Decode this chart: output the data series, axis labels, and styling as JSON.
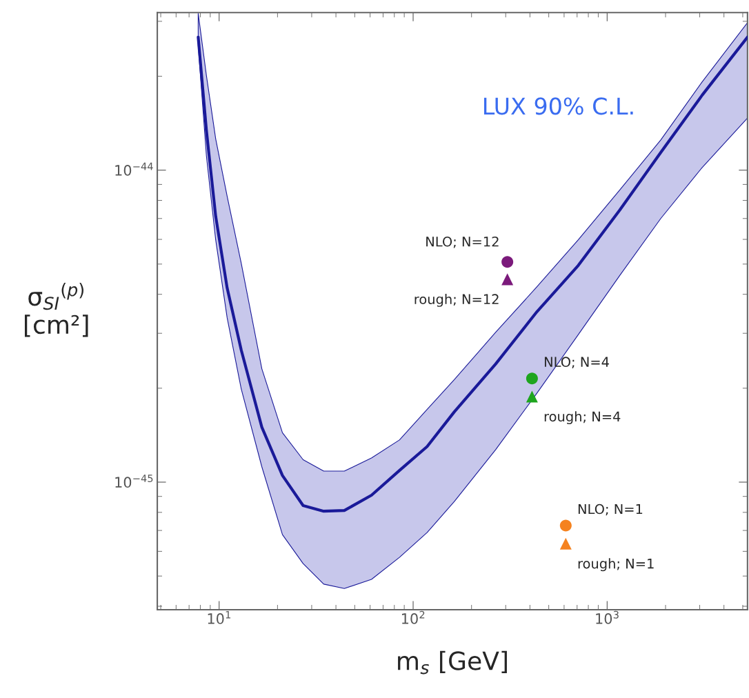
{
  "chart_data": {
    "type": "line",
    "xlabel": "m$_{s}$ [GeV]",
    "ylabel": "σ$_{SI}$$^{(p)}$\n[cm²]",
    "log": "xy",
    "grid": false,
    "xlim": [
      4.8,
      5290
    ],
    "ylim": [
      3.9e-46,
      3.2e-44
    ],
    "xticks": [
      {
        "value": 10,
        "label": "10$^{1}$"
      },
      {
        "value": 100,
        "label": "10$^{2}$"
      },
      {
        "value": 1000,
        "label": "10$^{3}$"
      }
    ],
    "yticks": [
      {
        "value": 1e-45,
        "label": "10$^{−45}$"
      },
      {
        "value": 1e-44,
        "label": "10$^{−44}$"
      }
    ],
    "series": [
      {
        "color": "#1a1a99",
        "line_style": "solid",
        "marker": "none",
        "x": [
          7.8,
          8.6,
          9.6,
          11,
          13,
          16.6,
          21.2,
          27.1,
          34.6,
          44.2,
          61,
          85,
          118,
          163,
          266,
          435,
          710,
          1160,
          1890,
          3090,
          5290
        ],
        "values": [
          2.67e-44,
          1.34e-44,
          7.11e-45,
          4.19e-45,
          2.65e-45,
          1.5e-45,
          1.05e-45,
          8.41e-46,
          8.07e-46,
          8.11e-46,
          9.08e-46,
          1.09e-45,
          1.3e-45,
          1.68e-45,
          2.39e-45,
          3.52e-45,
          4.95e-45,
          7.44e-45,
          1.14e-44,
          1.74e-44,
          2.67e-44
        ],
        "upper": [
          3.18e-44,
          2.01e-44,
          1.26e-44,
          8.24e-45,
          5.03e-45,
          2.31e-45,
          1.44e-45,
          1.18e-45,
          1.085e-45,
          1.085e-45,
          1.195e-45,
          1.365e-45,
          1.71e-45,
          2.13e-45,
          3.02e-45,
          4.23e-45,
          5.98e-45,
          8.63e-45,
          1.25e-44,
          1.92e-44,
          2.97e-44
        ],
        "lower": [
          2.51e-44,
          1.11e-44,
          5.98e-45,
          3.36e-45,
          1.99e-45,
          1.12e-45,
          6.79e-46,
          5.48e-46,
          4.71e-46,
          4.56e-46,
          4.88e-46,
          5.74e-46,
          6.89e-46,
          8.67e-46,
          1.27e-45,
          1.93e-45,
          2.97e-45,
          4.59e-45,
          7e-45,
          1.02e-44,
          1.47e-44
        ]
      },
      {
        "type": "scatter",
        "marker": "circle",
        "x": [
          306,
          410,
          612
        ],
        "values": [
          5.08e-45,
          2.15e-45,
          7.26e-46
        ],
        "colors": [
          "#7b1a7b",
          "#1ea51e",
          "#f5821f"
        ]
      },
      {
        "type": "scatter",
        "marker": "triangle",
        "x": [
          306,
          410,
          612
        ],
        "values": [
          4.47e-45,
          1.88e-45,
          6.35e-46
        ],
        "colors": [
          "#7b1a7b",
          "#1ea51e",
          "#f5821f"
        ]
      }
    ],
    "annotations": [
      "LUX 90% C.L.",
      {
        "text": "NLO; N=12",
        "x": 306,
        "y": 5.08e-45
      },
      {
        "text": "rough; N=12",
        "x": 306,
        "y": 4.47e-45
      },
      {
        "text": "NLO; N=4",
        "x": 410,
        "y": 2.15e-45
      },
      {
        "text": "rough; N=4",
        "x": 410,
        "y": 1.88e-45
      },
      {
        "text": "NLO; N=1",
        "x": 612,
        "y": 7.26e-46
      },
      {
        "text": "rough; N=1",
        "x": 612,
        "y": 6.35e-46
      }
    ]
  }
}
